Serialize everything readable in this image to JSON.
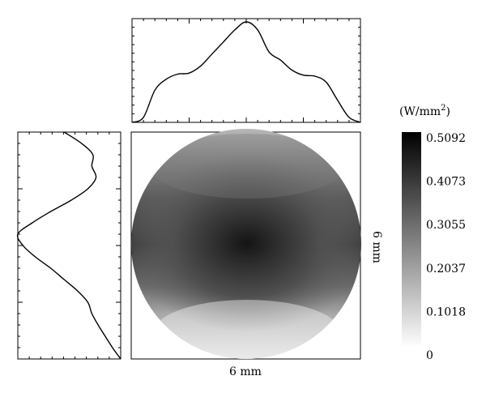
{
  "chart_data": {
    "type": "heatmap",
    "xlabel": "6 mm",
    "ylabel": "6 mm",
    "colorbar": {
      "title_prefix": "(W/mm",
      "title_sup": "2",
      "title_suffix": ")",
      "ticks": [
        "0.5092",
        "0.4073",
        "0.3055",
        "0.2037",
        "0.1018",
        "0"
      ],
      "min": 0,
      "max": 0.5092,
      "colormap": "white-to-black"
    },
    "profiles": {
      "horizontal": {
        "x": [
          0,
          0.05,
          0.1,
          0.15,
          0.2,
          0.25,
          0.3,
          0.35,
          0.4,
          0.45,
          0.5,
          0.55,
          0.6,
          0.65,
          0.7,
          0.75,
          0.8,
          0.85,
          0.9,
          0.95,
          1.0
        ],
        "y": [
          0.0,
          0.05,
          0.32,
          0.43,
          0.48,
          0.49,
          0.56,
          0.68,
          0.8,
          0.92,
          1.0,
          0.92,
          0.7,
          0.62,
          0.52,
          0.47,
          0.46,
          0.4,
          0.22,
          0.05,
          0.0
        ]
      },
      "vertical": {
        "y": [
          0,
          0.05,
          0.1,
          0.15,
          0.2,
          0.25,
          0.3,
          0.35,
          0.4,
          0.45,
          0.5,
          0.55,
          0.6,
          0.65,
          0.7,
          0.75,
          0.8,
          0.85,
          0.9,
          0.95,
          1.0
        ],
        "value": [
          0.45,
          0.62,
          0.73,
          0.72,
          0.76,
          0.68,
          0.52,
          0.32,
          0.14,
          0.0,
          0.05,
          0.17,
          0.32,
          0.45,
          0.58,
          0.68,
          0.72,
          0.78,
          0.85,
          0.92,
          1.0
        ]
      }
    }
  }
}
